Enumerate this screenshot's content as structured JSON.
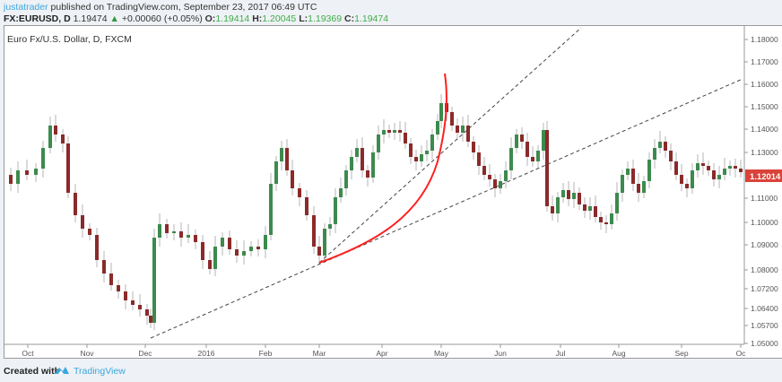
{
  "header": {
    "author": "justatrader",
    "published_text": " published on TradingView.com, September 23, 2017 06:49 UTC",
    "symbol": "FX:EURUSD, D",
    "last": "1.19474",
    "change_icon": "triangle-up-icon",
    "change": "+0.00060 (+0.05%)",
    "open_label": "O:",
    "open": "1.19414",
    "high_label": "H:",
    "high": "1.20045",
    "low_label": "L:",
    "low": "1.19369",
    "close_label": "C:",
    "close": "1.19474"
  },
  "chart": {
    "title": "Euro Fx/U.S. Dollar, D, FXCM",
    "current_price": "1.12014",
    "current_price_color": "#d9433a",
    "up_color": "#3d8a4e",
    "down_color": "#8b2a2a",
    "wick_color": "#b5b5b5",
    "curve_color": "#ff1f1f"
  },
  "chart_data": {
    "type": "candlestick",
    "title": "Euro Fx/U.S. Dollar, D, FXCM",
    "xlabel": "",
    "ylabel": "",
    "x_ticks": [
      "Oct",
      "Nov",
      "Dec",
      "2016",
      "Feb",
      "Mar",
      "Apr",
      "May",
      "Jun",
      "Jul",
      "Aug",
      "Sep",
      "Oc"
    ],
    "y_ticks": [
      "1.18000",
      "1.17000",
      "1.16000",
      "1.15000",
      "1.14000",
      "1.13000",
      "1.12014",
      "1.11000",
      "1.10000",
      "1.09000",
      "1.08000",
      "1.07200",
      "1.06400",
      "1.05700",
      "1.05000"
    ],
    "ylim": [
      1.048,
      1.187
    ],
    "approx_closes": {
      "Oct": 1.128,
      "mid-Oct": 1.145,
      "Nov": 1.1,
      "late-Nov": 1.065,
      "Dec": 1.058,
      "early-Dec": 1.092,
      "2016": 1.088,
      "Feb": 1.113,
      "mid-Feb": 1.131,
      "Mar": 1.095,
      "mid-Mar": 1.115,
      "Apr": 1.139,
      "late-Apr": 1.135,
      "May": 1.15,
      "mid-May": 1.128,
      "Jun": 1.117,
      "mid-Jun": 1.133,
      "late-Jun": 1.112,
      "Jul": 1.108,
      "mid-Jul": 1.1,
      "Aug": 1.115,
      "mid-Aug": 1.13,
      "Sep": 1.122,
      "Oc": 1.12
    },
    "annotations": [
      {
        "type": "dashed-trendline",
        "from": [
          "Dec",
          1.052
        ],
        "to": [
          "Oc",
          1.162
        ]
      },
      {
        "type": "dashed-trendline",
        "from": [
          "Mar",
          1.082
        ],
        "to": [
          "May",
          1.188
        ]
      },
      {
        "type": "parabolic-red-curve",
        "from": [
          "Mar",
          1.082
        ],
        "to": [
          "May",
          1.164
        ]
      }
    ]
  },
  "footer": {
    "created_with": "Created with",
    "logo_icon": "tradingview-cloud-icon",
    "brand": "TradingView"
  }
}
